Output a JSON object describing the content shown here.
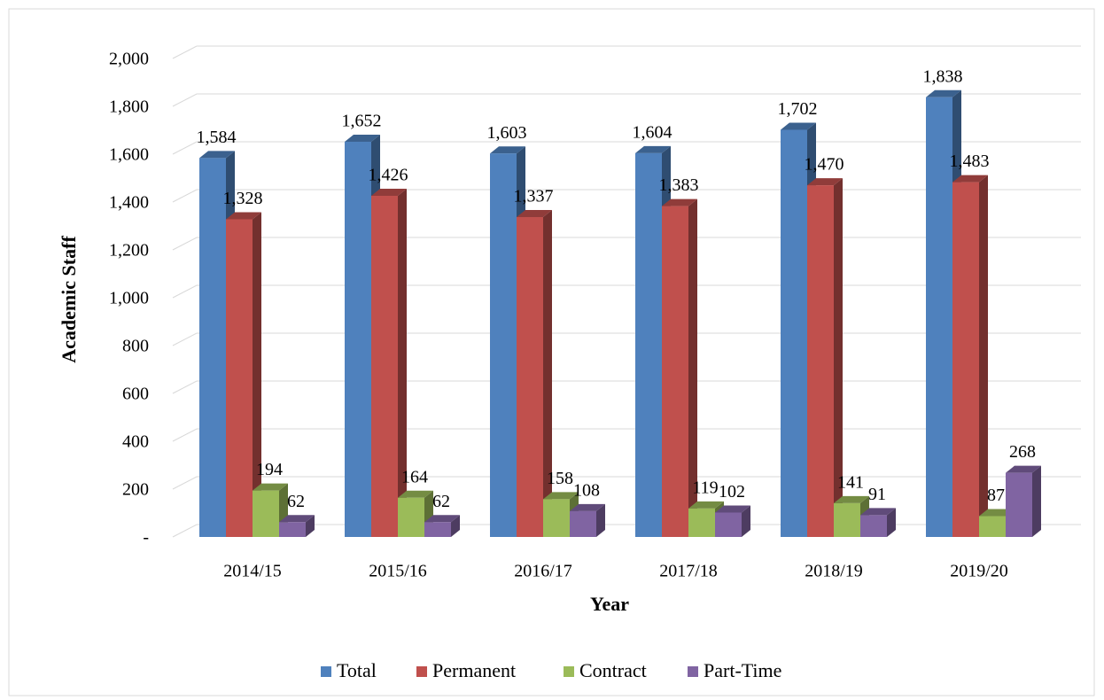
{
  "chart_data": {
    "type": "bar3d",
    "xlabel": "Year",
    "ylabel": "Academic Staff",
    "categories": [
      "2014/15",
      "2015/16",
      "2016/17",
      "2017/18",
      "2018/19",
      "2019/20"
    ],
    "series": [
      {
        "name": "Total",
        "color": "#4f81bd",
        "values": [
          1584,
          1652,
          1603,
          1604,
          1702,
          1838
        ],
        "value_labels": [
          "1,584",
          "1,652",
          "1,603",
          "1,604",
          "1,702",
          "1,838"
        ]
      },
      {
        "name": "Permanent",
        "color": "#c0504d",
        "values": [
          1328,
          1426,
          1337,
          1383,
          1470,
          1483
        ],
        "value_labels": [
          "1,328",
          "1,426",
          "1,337",
          "1,383",
          "1,470",
          "1,483"
        ]
      },
      {
        "name": "Contract",
        "color": "#9bbb59",
        "values": [
          194,
          164,
          158,
          119,
          141,
          87
        ]
      },
      {
        "name": "Part-Time",
        "color": "#8064a2",
        "values": [
          62,
          62,
          108,
          102,
          91,
          268
        ]
      }
    ],
    "ylim": [
      0,
      2000
    ],
    "yticks": [
      {
        "value": 0,
        "label": "-"
      },
      200,
      400,
      600,
      800,
      {
        "value": 1000,
        "label": "1,000"
      },
      {
        "value": 1200,
        "label": "1,200"
      },
      {
        "value": 1400,
        "label": "1,400"
      },
      {
        "value": 1600,
        "label": "1,600"
      },
      {
        "value": 1800,
        "label": "1,800"
      },
      {
        "value": 2000,
        "label": "2,000"
      }
    ],
    "grid": true,
    "legend": "bottom"
  }
}
